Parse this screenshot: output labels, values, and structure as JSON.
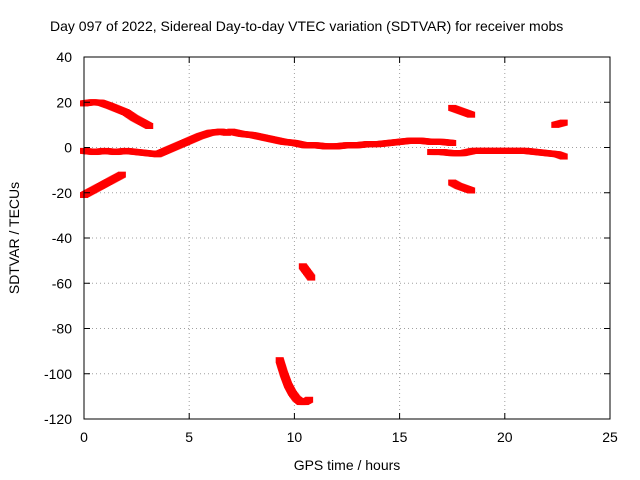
{
  "chart_data": {
    "type": "scatter",
    "title": "Day 097 of 2022, Sidereal Day-to-day VTEC variation (SDTVAR) for receiver mobs",
    "xlabel": "GPS time / hours",
    "ylabel": "SDTVAR / TECUs",
    "xlim": [
      0,
      25
    ],
    "ylim": [
      -120,
      40
    ],
    "xticks": [
      0,
      5,
      10,
      15,
      20,
      25
    ],
    "yticks": [
      -120,
      -100,
      -80,
      -60,
      -40,
      -20,
      0,
      20,
      40
    ],
    "grid": true,
    "series": [
      {
        "name": "seg-top-arc",
        "color": "#ff0000",
        "x": [
          0,
          0.4,
          0.8,
          1.2,
          1.6,
          2.0,
          2.4,
          2.8,
          3.1
        ],
        "y": [
          19.5,
          20,
          19.8,
          18.5,
          17,
          15.5,
          13,
          11,
          9.5
        ]
      },
      {
        "name": "seg-low-start",
        "color": "#ff0000",
        "x": [
          0,
          0.3,
          0.6,
          0.9,
          1.2,
          1.5,
          1.8
        ],
        "y": [
          -21,
          -19.5,
          -18,
          -16.5,
          -15,
          -13.5,
          -12
        ]
      },
      {
        "name": "seg-main-left",
        "color": "#ff0000",
        "x": [
          0,
          0.5,
          1,
          1.5,
          2,
          2.5,
          3,
          3.5,
          4,
          4.5,
          5,
          5.5,
          6,
          6.5,
          6.8
        ],
        "y": [
          -1.5,
          -2,
          -1.5,
          -2,
          -1.5,
          -2,
          -2.5,
          -3,
          -1,
          1,
          3,
          5,
          6.5,
          7,
          6.5
        ]
      },
      {
        "name": "seg-main-mid",
        "color": "#ff0000",
        "x": [
          7,
          7.5,
          8,
          8.5,
          9,
          9.5,
          10,
          10.5,
          11,
          11.5,
          12,
          12.5,
          13,
          13.5,
          14,
          14.5,
          15,
          15.5,
          16,
          16.5,
          17,
          17.5
        ],
        "y": [
          7,
          6,
          5.5,
          4.5,
          3.5,
          2.5,
          2,
          1,
          1,
          0.5,
          0.5,
          1,
          1,
          1.5,
          1.5,
          2,
          2.5,
          3,
          3,
          2.5,
          2.5,
          2
        ]
      },
      {
        "name": "seg-main-right",
        "color": "#ff0000",
        "x": [
          16.5,
          17,
          17.5,
          18,
          18.5,
          19,
          19.5,
          20,
          20.5,
          21,
          21.5,
          22,
          22.5,
          22.8
        ],
        "y": [
          -2,
          -2,
          -2.5,
          -2.5,
          -1.5,
          -1.5,
          -1.5,
          -1.5,
          -1.5,
          -1.5,
          -2,
          -2.5,
          -3,
          -4
        ]
      },
      {
        "name": "seg-upper-right",
        "color": "#ff0000",
        "x": [
          17.5,
          17.8,
          18.1,
          18.4
        ],
        "y": [
          17.5,
          16.5,
          15.5,
          14.5
        ]
      },
      {
        "name": "seg-lower-right",
        "color": "#ff0000",
        "x": [
          17.5,
          17.8,
          18.1,
          18.4
        ],
        "y": [
          -15.5,
          -17,
          -18,
          -19
        ]
      },
      {
        "name": "seg-far-right",
        "color": "#ff0000",
        "x": [
          22.4,
          22.6,
          22.8
        ],
        "y": [
          10,
          10.5,
          11
        ]
      },
      {
        "name": "seg-dip-small",
        "color": "#ff0000",
        "x": [
          10.4,
          10.6,
          10.8
        ],
        "y": [
          -52.5,
          -55,
          -57.5
        ]
      },
      {
        "name": "seg-dip-large",
        "color": "#ff0000",
        "x": [
          9.3,
          9.5,
          9.7,
          9.9,
          10.1,
          10.3,
          10.5,
          10.7
        ],
        "y": [
          -94,
          -100,
          -105,
          -108.5,
          -111,
          -112.5,
          -112.5,
          -111.5
        ]
      }
    ]
  }
}
